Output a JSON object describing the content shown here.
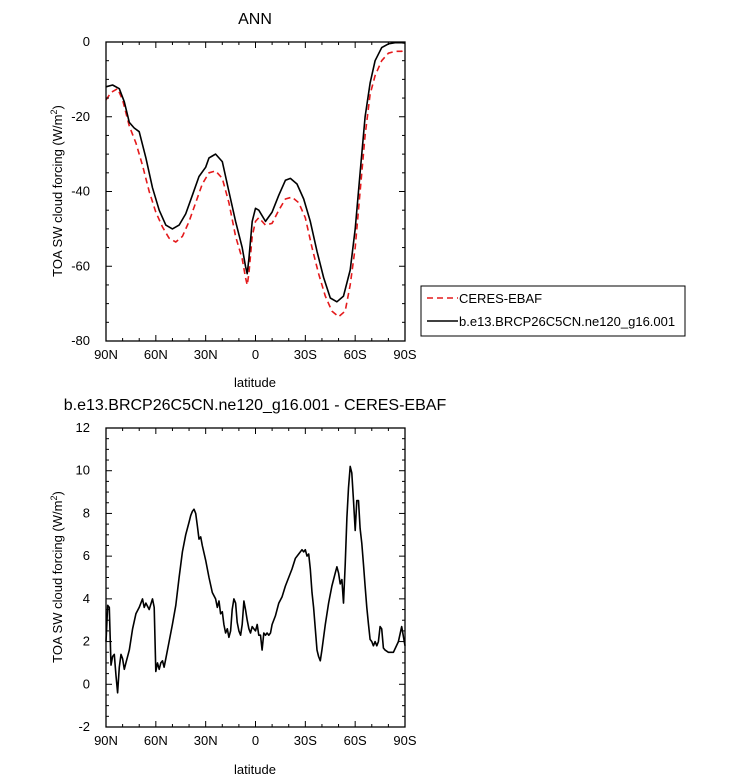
{
  "chart_data": [
    {
      "type": "line",
      "title": "ANN",
      "xlabel": "latitude",
      "ylabel": "TOA SW cloud forcing (W/m",
      "ylabel_sup": "2",
      "ylabel_close": ")",
      "xlim": [
        90,
        -90
      ],
      "ylim": [
        -80,
        0
      ],
      "x_ticks": [
        90,
        60,
        30,
        0,
        -30,
        -60,
        -90
      ],
      "x_tick_labels": [
        "90N",
        "60N",
        "30N",
        "0",
        "30S",
        "60S",
        "90S"
      ],
      "y_ticks": [
        0,
        -20,
        -40,
        -60,
        -80
      ],
      "y_tick_labels": [
        "0",
        "-20",
        "-40",
        "-60",
        "-80"
      ],
      "legend_position": "right",
      "series": [
        {
          "name": "CERES-EBAF",
          "color": "#e41a1c",
          "style": "dashed",
          "points": [
            [
              90,
              -15.5
            ],
            [
              87,
              -13.5
            ],
            [
              83,
              -12.5
            ],
            [
              80,
              -15.5
            ],
            [
              76,
              -22.5
            ],
            [
              72,
              -27
            ],
            [
              68,
              -33
            ],
            [
              64,
              -40
            ],
            [
              60,
              -45.5
            ],
            [
              56,
              -49.5
            ],
            [
              52,
              -52.5
            ],
            [
              48,
              -53.5
            ],
            [
              44,
              -52
            ],
            [
              40,
              -48
            ],
            [
              36,
              -43
            ],
            [
              32,
              -38
            ],
            [
              28,
              -35
            ],
            [
              24,
              -34.5
            ],
            [
              20,
              -36.5
            ],
            [
              16,
              -43
            ],
            [
              12,
              -52
            ],
            [
              8,
              -58
            ],
            [
              6,
              -63
            ],
            [
              5,
              -65
            ],
            [
              4,
              -62
            ],
            [
              2,
              -52
            ],
            [
              0,
              -48
            ],
            [
              -2,
              -47
            ],
            [
              -6,
              -49
            ],
            [
              -10,
              -48.5
            ],
            [
              -14,
              -45
            ],
            [
              -18,
              -42
            ],
            [
              -22,
              -41.5
            ],
            [
              -26,
              -43
            ],
            [
              -30,
              -47
            ],
            [
              -34,
              -55
            ],
            [
              -38,
              -62
            ],
            [
              -42,
              -68
            ],
            [
              -46,
              -72
            ],
            [
              -50,
              -73.5
            ],
            [
              -54,
              -72
            ],
            [
              -57,
              -65
            ],
            [
              -60,
              -55
            ],
            [
              -63,
              -40
            ],
            [
              -66,
              -25
            ],
            [
              -69,
              -14
            ],
            [
              -72,
              -9
            ],
            [
              -76,
              -5
            ],
            [
              -80,
              -3
            ],
            [
              -84,
              -2.5
            ],
            [
              -88,
              -2.5
            ],
            [
              -90,
              -2
            ]
          ]
        },
        {
          "name": "b.e13.BRCP26C5CN.ne120_g16.001",
          "color": "#000000",
          "style": "solid",
          "points": [
            [
              90,
              -12
            ],
            [
              86,
              -11.5
            ],
            [
              82,
              -12.5
            ],
            [
              79,
              -16
            ],
            [
              76,
              -21.5
            ],
            [
              73,
              -23
            ],
            [
              70,
              -24
            ],
            [
              66,
              -31
            ],
            [
              62,
              -39
            ],
            [
              58,
              -45
            ],
            [
              54,
              -49
            ],
            [
              50,
              -50
            ],
            [
              46,
              -49
            ],
            [
              42,
              -46
            ],
            [
              38,
              -41
            ],
            [
              34,
              -36
            ],
            [
              30,
              -33.5
            ],
            [
              28,
              -31
            ],
            [
              26,
              -30.5
            ],
            [
              24,
              -30
            ],
            [
              20,
              -32
            ],
            [
              16,
              -40
            ],
            [
              12,
              -48
            ],
            [
              8,
              -55
            ],
            [
              6,
              -60
            ],
            [
              5,
              -62
            ],
            [
              4,
              -58
            ],
            [
              2,
              -48
            ],
            [
              0,
              -44.5
            ],
            [
              -2,
              -45
            ],
            [
              -6,
              -48
            ],
            [
              -10,
              -45.5
            ],
            [
              -14,
              -41
            ],
            [
              -18,
              -37
            ],
            [
              -21,
              -36.5
            ],
            [
              -25,
              -38
            ],
            [
              -29,
              -42
            ],
            [
              -33,
              -48
            ],
            [
              -37,
              -56
            ],
            [
              -41,
              -63
            ],
            [
              -45,
              -68.5
            ],
            [
              -49,
              -69.5
            ],
            [
              -53,
              -68
            ],
            [
              -57,
              -61
            ],
            [
              -60,
              -50
            ],
            [
              -63,
              -35
            ],
            [
              -66,
              -20
            ],
            [
              -69,
              -11
            ],
            [
              -72,
              -5
            ],
            [
              -76,
              -1.5
            ],
            [
              -80,
              -0.5
            ],
            [
              -84,
              -0.2
            ],
            [
              -88,
              -0.2
            ],
            [
              -90,
              -0.3
            ]
          ]
        }
      ]
    },
    {
      "type": "line",
      "title": "b.e13.BRCP26C5CN.ne120_g16.001 - CERES-EBAF",
      "xlabel": "latitude",
      "ylabel": "TOA SW cloud forcing (W/m",
      "ylabel_sup": "2",
      "ylabel_close": ")",
      "xlim": [
        90,
        -90
      ],
      "ylim": [
        -2,
        12
      ],
      "x_ticks": [
        90,
        60,
        30,
        0,
        -30,
        -60,
        -90
      ],
      "x_tick_labels": [
        "90N",
        "60N",
        "30N",
        "0",
        "30S",
        "60S",
        "90S"
      ],
      "y_ticks": [
        12,
        10,
        8,
        6,
        4,
        2,
        0,
        -2
      ],
      "y_tick_labels": [
        "12",
        "10",
        "8",
        "6",
        "4",
        "2",
        "0",
        "-2"
      ],
      "series": [
        {
          "color": "#000000",
          "style": "solid",
          "points": [
            [
              90,
              2.0
            ],
            [
              89,
              3.7
            ],
            [
              88,
              3.6
            ],
            [
              87,
              0.9
            ],
            [
              86,
              1.3
            ],
            [
              85,
              1.4
            ],
            [
              84,
              0.4
            ],
            [
              83,
              -0.4
            ],
            [
              82,
              0.8
            ],
            [
              81,
              1.4
            ],
            [
              80,
              1.2
            ],
            [
              79,
              0.7
            ],
            [
              78,
              1.0
            ],
            [
              76,
              1.6
            ],
            [
              74,
              2.6
            ],
            [
              72,
              3.3
            ],
            [
              70,
              3.6
            ],
            [
              68,
              4.0
            ],
            [
              67,
              3.6
            ],
            [
              66,
              3.8
            ],
            [
              64,
              3.5
            ],
            [
              62,
              4.0
            ],
            [
              61,
              3.6
            ],
            [
              60,
              0.6
            ],
            [
              59,
              1.0
            ],
            [
              58,
              0.7
            ],
            [
              57,
              1.0
            ],
            [
              56,
              1.1
            ],
            [
              55,
              0.8
            ],
            [
              54,
              1.2
            ],
            [
              52,
              2.0
            ],
            [
              50,
              2.8
            ],
            [
              48,
              3.7
            ],
            [
              46,
              5.0
            ],
            [
              44,
              6.2
            ],
            [
              42,
              7.0
            ],
            [
              40,
              7.6
            ],
            [
              39,
              7.9
            ],
            [
              38,
              8.1
            ],
            [
              37,
              8.2
            ],
            [
              36,
              8.0
            ],
            [
              35,
              7.4
            ],
            [
              34,
              6.8
            ],
            [
              33,
              6.9
            ],
            [
              32,
              6.5
            ],
            [
              30,
              5.8
            ],
            [
              28,
              5.0
            ],
            [
              26,
              4.3
            ],
            [
              24,
              4.0
            ],
            [
              23,
              3.6
            ],
            [
              22,
              3.9
            ],
            [
              21,
              3.3
            ],
            [
              20,
              3.4
            ],
            [
              19,
              2.8
            ],
            [
              18,
              2.4
            ],
            [
              17,
              2.6
            ],
            [
              16,
              2.2
            ],
            [
              15,
              2.5
            ],
            [
              14,
              3.5
            ],
            [
              13,
              4.0
            ],
            [
              12,
              3.8
            ],
            [
              11,
              2.9
            ],
            [
              10,
              2.5
            ],
            [
              9,
              2.3
            ],
            [
              8,
              2.8
            ],
            [
              7,
              3.9
            ],
            [
              6,
              3.5
            ],
            [
              5,
              3.0
            ],
            [
              4,
              2.6
            ],
            [
              3,
              2.4
            ],
            [
              2,
              2.7
            ],
            [
              1,
              2.6
            ],
            [
              0,
              2.5
            ],
            [
              -1,
              2.8
            ],
            [
              -2,
              2.3
            ],
            [
              -3,
              2.3
            ],
            [
              -4,
              1.6
            ],
            [
              -5,
              2.4
            ],
            [
              -6,
              2.3
            ],
            [
              -7,
              2.4
            ],
            [
              -8,
              2.3
            ],
            [
              -9,
              2.4
            ],
            [
              -10,
              2.8
            ],
            [
              -12,
              3.2
            ],
            [
              -14,
              3.8
            ],
            [
              -16,
              4.1
            ],
            [
              -18,
              4.6
            ],
            [
              -20,
              5.0
            ],
            [
              -22,
              5.4
            ],
            [
              -24,
              5.9
            ],
            [
              -26,
              6.1
            ],
            [
              -28,
              6.3
            ],
            [
              -29,
              6.2
            ],
            [
              -30,
              6.3
            ],
            [
              -31,
              6.0
            ],
            [
              -32,
              6.1
            ],
            [
              -33,
              5.4
            ],
            [
              -34,
              4.3
            ],
            [
              -35,
              3.6
            ],
            [
              -36,
              2.6
            ],
            [
              -37,
              1.6
            ],
            [
              -38,
              1.3
            ],
            [
              -39,
              1.1
            ],
            [
              -40,
              1.6
            ],
            [
              -42,
              2.8
            ],
            [
              -44,
              3.8
            ],
            [
              -46,
              4.6
            ],
            [
              -48,
              5.2
            ],
            [
              -49,
              5.5
            ],
            [
              -50,
              5.2
            ],
            [
              -51,
              4.7
            ],
            [
              -52,
              4.9
            ],
            [
              -53,
              3.8
            ],
            [
              -54,
              5.6
            ],
            [
              -55,
              7.8
            ],
            [
              -56,
              9.2
            ],
            [
              -57,
              10.2
            ],
            [
              -58,
              9.9
            ],
            [
              -59,
              8.6
            ],
            [
              -60,
              7.2
            ],
            [
              -61,
              8.6
            ],
            [
              -62,
              8.6
            ],
            [
              -63,
              7.3
            ],
            [
              -64,
              6.6
            ],
            [
              -65,
              5.6
            ],
            [
              -66,
              4.6
            ],
            [
              -67,
              3.6
            ],
            [
              -68,
              2.8
            ],
            [
              -69,
              2.1
            ],
            [
              -70,
              2.0
            ],
            [
              -71,
              1.8
            ],
            [
              -72,
              2.0
            ],
            [
              -73,
              1.8
            ],
            [
              -74,
              2.0
            ],
            [
              -75,
              2.7
            ],
            [
              -76,
              2.6
            ],
            [
              -77,
              1.7
            ],
            [
              -78,
              1.6
            ],
            [
              -80,
              1.5
            ],
            [
              -83,
              1.5
            ],
            [
              -86,
              2.0
            ],
            [
              -88,
              2.7
            ],
            [
              -90,
              1.8
            ]
          ]
        }
      ]
    }
  ]
}
